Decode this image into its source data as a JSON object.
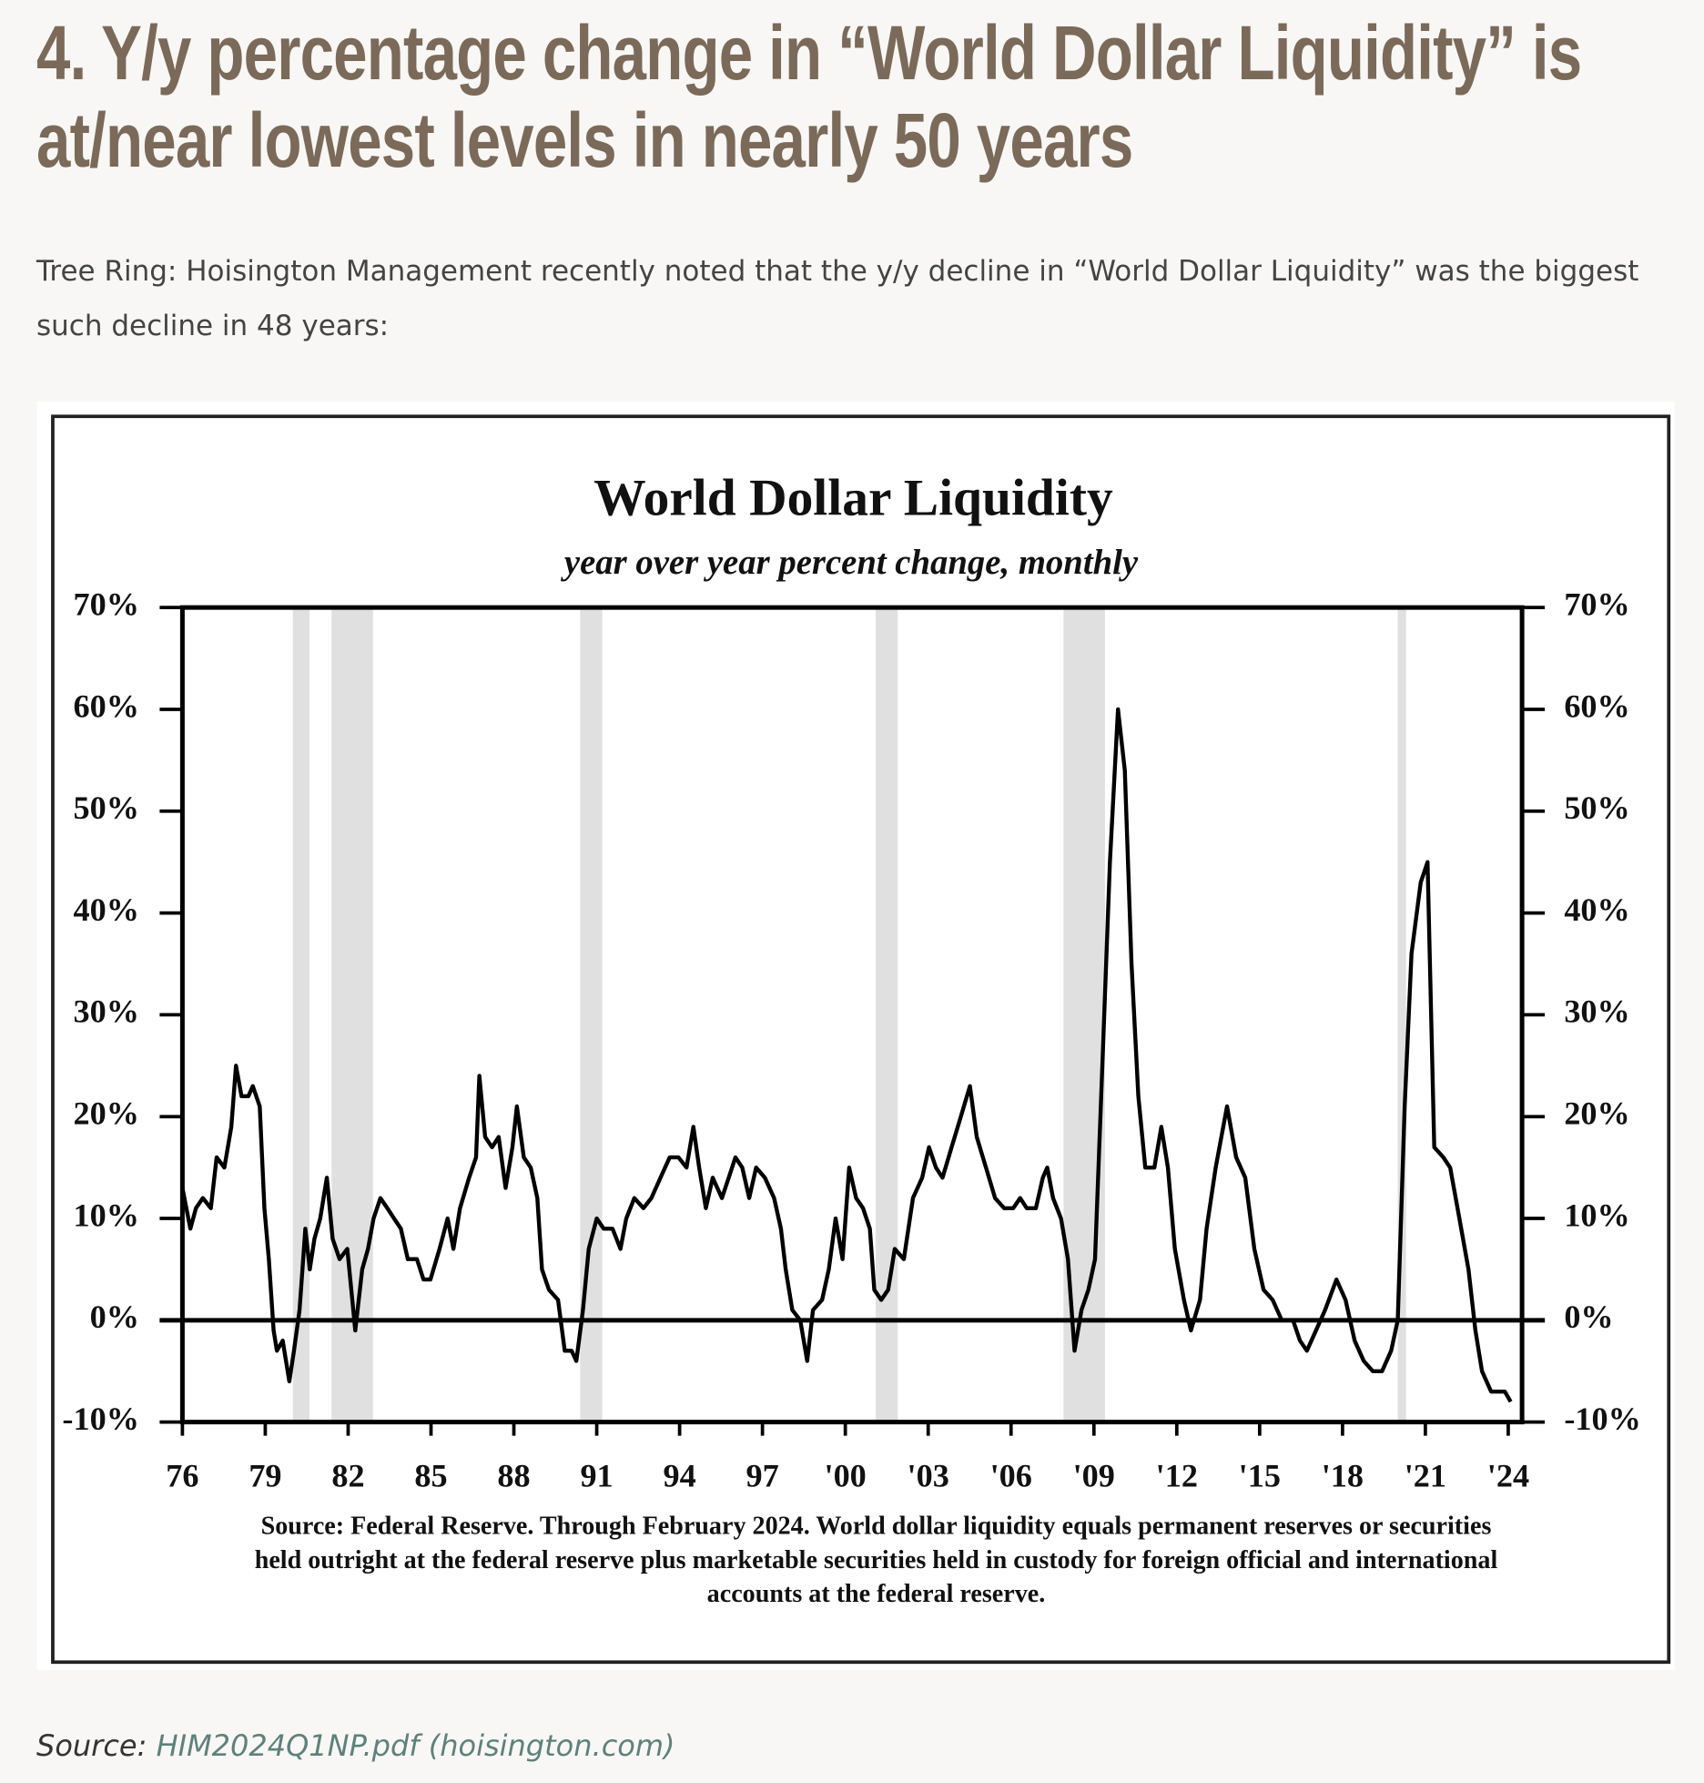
{
  "header": {
    "title": "4. Y/y percentage change in “World Dollar Liquidity” is at/near lowest levels in nearly 50 years",
    "intro": "Tree Ring: Hoisington Management recently noted that the y/y decline in “World Dollar Liquidity” was the biggest such decline in 48 years:"
  },
  "chart_data": {
    "type": "line",
    "title": "World Dollar Liquidity",
    "subtitle": "year over year percent change, monthly",
    "note": [
      "Source: Federal Reserve. Through February 2024. World dollar liquidity equals permanent reserves or securities",
      "held outright at the federal reserve plus marketable securities held in custody for foreign official and international",
      "accounts at the federal reserve."
    ],
    "color": "#000000",
    "shade_color": "#e0e0e0",
    "recessions": [
      [
        1980.0,
        1980.6
      ],
      [
        1981.4,
        1982.9
      ],
      [
        1990.4,
        1991.2
      ],
      [
        2001.1,
        2001.9
      ],
      [
        2007.9,
        2009.4
      ],
      [
        2020.0,
        2020.3
      ]
    ],
    "x": [
      1976.0,
      1976.29,
      1976.49,
      1976.74,
      1977.03,
      1977.24,
      1977.52,
      1977.77,
      1977.94,
      1978.14,
      1978.39,
      1978.55,
      1978.8,
      1978.97,
      1979.13,
      1979.3,
      1979.42,
      1979.63,
      1979.87,
      1980.04,
      1980.24,
      1980.45,
      1980.61,
      1980.78,
      1980.99,
      1981.23,
      1981.44,
      1981.69,
      1981.97,
      1982.26,
      1982.51,
      1982.72,
      1982.92,
      1983.17,
      1983.42,
      1983.66,
      1983.91,
      1984.16,
      1984.49,
      1984.73,
      1984.98,
      1985.31,
      1985.6,
      1985.81,
      1986.05,
      1986.38,
      1986.63,
      1986.75,
      1986.96,
      1987.21,
      1987.45,
      1987.7,
      1987.95,
      1988.11,
      1988.36,
      1988.61,
      1988.85,
      1989.02,
      1989.27,
      1989.6,
      1989.84,
      1990.09,
      1990.26,
      1990.5,
      1990.71,
      1991.0,
      1991.25,
      1991.57,
      1991.86,
      1992.07,
      1992.36,
      1992.69,
      1992.98,
      1993.31,
      1993.64,
      1993.96,
      1994.25,
      1994.5,
      1994.71,
      1994.95,
      1995.2,
      1995.53,
      1995.78,
      1996.02,
      1996.27,
      1996.52,
      1996.77,
      1997.09,
      1997.42,
      1997.67,
      1997.84,
      1998.08,
      1998.37,
      1998.62,
      1998.83,
      1999.16,
      1999.4,
      1999.65,
      1999.9,
      2000.14,
      2000.39,
      2000.64,
      2000.89,
      2001.05,
      2001.3,
      2001.55,
      2001.79,
      2002.12,
      2002.45,
      2002.78,
      2003.03,
      2003.28,
      2003.52,
      2003.85,
      2004.18,
      2004.51,
      2004.76,
      2005.09,
      2005.42,
      2005.75,
      2006.08,
      2006.33,
      2006.57,
      2006.9,
      2007.15,
      2007.31,
      2007.52,
      2007.81,
      2008.06,
      2008.3,
      2008.55,
      2008.8,
      2009.04,
      2009.29,
      2009.58,
      2009.87,
      2010.12,
      2010.36,
      2010.61,
      2010.86,
      2011.19,
      2011.44,
      2011.68,
      2011.93,
      2012.26,
      2012.51,
      2012.84,
      2013.08,
      2013.41,
      2013.82,
      2014.15,
      2014.48,
      2014.81,
      2015.14,
      2015.47,
      2015.8,
      2016.21,
      2016.46,
      2016.71,
      2017.04,
      2017.37,
      2017.78,
      2018.11,
      2018.44,
      2018.77,
      2019.1,
      2019.43,
      2019.76,
      2020.0,
      2020.25,
      2020.5,
      2020.83,
      2021.08,
      2021.32,
      2021.65,
      2021.9,
      2022.23,
      2022.56,
      2022.81,
      2023.05,
      2023.38,
      2023.63,
      2023.88,
      2024.09
    ],
    "values": [
      13,
      9,
      11,
      12,
      11,
      16,
      15,
      19,
      25,
      22,
      22,
      23,
      21,
      11,
      6,
      -1,
      -3,
      -2,
      -6,
      -3,
      1,
      9,
      5,
      8,
      10,
      14,
      8,
      6,
      7,
      -1,
      5,
      7,
      10,
      12,
      11,
      10,
      9,
      6,
      6,
      4,
      4,
      7,
      10,
      7,
      11,
      14,
      16,
      24,
      18,
      17,
      18,
      13,
      17,
      21,
      16,
      15,
      12,
      5,
      3,
      2,
      -3,
      -3,
      -4,
      1,
      7,
      10,
      9,
      9,
      7,
      10,
      12,
      11,
      12,
      14,
      16,
      16,
      15,
      19,
      15,
      11,
      14,
      12,
      14,
      16,
      15,
      12,
      15,
      14,
      12,
      9,
      5,
      1,
      0,
      -4,
      1,
      2,
      5,
      10,
      6,
      15,
      12,
      11,
      9,
      3,
      2,
      3,
      7,
      6,
      12,
      14,
      17,
      15,
      14,
      17,
      20,
      23,
      18,
      15,
      12,
      11,
      11,
      12,
      11,
      11,
      14,
      15,
      12,
      10,
      6,
      -3,
      1,
      3,
      6,
      24,
      45,
      60,
      54,
      35,
      22,
      15,
      15,
      19,
      15,
      7,
      2,
      -1,
      2,
      9,
      15,
      21,
      16,
      14,
      7,
      3,
      2,
      0,
      0,
      -2,
      -3,
      -1,
      1,
      4,
      2,
      -2,
      -4,
      -5,
      -5,
      -3,
      0,
      21,
      36,
      43,
      45,
      17,
      16,
      15,
      10,
      5,
      -1,
      -5,
      -7,
      -7,
      -7,
      -8
    ],
    "xlim": [
      1976,
      2024.5
    ],
    "xticks": [
      {
        "value": 1976,
        "label": "76"
      },
      {
        "value": 1979,
        "label": "79"
      },
      {
        "value": 1982,
        "label": "82"
      },
      {
        "value": 1985,
        "label": "85"
      },
      {
        "value": 1988,
        "label": "88"
      },
      {
        "value": 1991,
        "label": "91"
      },
      {
        "value": 1994,
        "label": "94"
      },
      {
        "value": 1997,
        "label": "97"
      },
      {
        "value": 2000,
        "label": "'00"
      },
      {
        "value": 2003,
        "label": "'03"
      },
      {
        "value": 2006,
        "label": "'06"
      },
      {
        "value": 2009,
        "label": "'09"
      },
      {
        "value": 2012,
        "label": "'12"
      },
      {
        "value": 2015,
        "label": "'15"
      },
      {
        "value": 2018,
        "label": "'18"
      },
      {
        "value": 2021,
        "label": "'21"
      },
      {
        "value": 2024,
        "label": "'24"
      }
    ],
    "ylim": [
      -10,
      70
    ],
    "yticks": [
      {
        "value": -10,
        "label": "-10%"
      },
      {
        "value": 0,
        "label": "0%"
      },
      {
        "value": 10,
        "label": "10%"
      },
      {
        "value": 20,
        "label": "20%"
      },
      {
        "value": 30,
        "label": "30%"
      },
      {
        "value": 40,
        "label": "40%"
      },
      {
        "value": 50,
        "label": "50%"
      },
      {
        "value": 60,
        "label": "60%"
      },
      {
        "value": 70,
        "label": "70%"
      }
    ],
    "y2lim": [
      -10,
      70
    ],
    "y2ticks": [
      {
        "value": -10,
        "label": "-10%"
      },
      {
        "value": 0,
        "label": "0%"
      },
      {
        "value": 10,
        "label": "10%"
      },
      {
        "value": 20,
        "label": "20%"
      },
      {
        "value": 30,
        "label": "30%"
      },
      {
        "value": 40,
        "label": "40%"
      },
      {
        "value": 50,
        "label": "50%"
      },
      {
        "value": 60,
        "label": "60%"
      },
      {
        "value": 70,
        "label": "70%"
      }
    ],
    "grid": false
  },
  "footer": {
    "label": "Source:",
    "link": "HIM2024Q1NP.pdf (hoisington.com)"
  }
}
